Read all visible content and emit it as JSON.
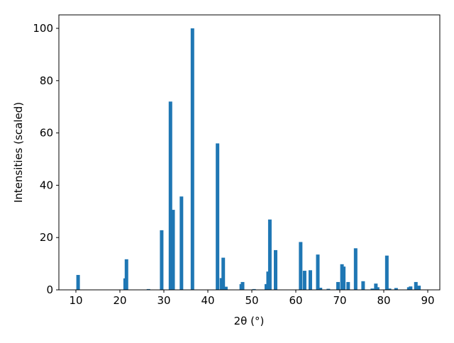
{
  "chart_data": {
    "type": "bar",
    "x_label": "2θ (°)",
    "y_label": "Intensities (scaled)",
    "color": "#1f77b4",
    "x": [
      10.5,
      21.2,
      21.5,
      26.5,
      29.5,
      31.5,
      32.1,
      34.0,
      36.5,
      42.2,
      43.1,
      43.5,
      44.1,
      47.6,
      47.9,
      50.5,
      53.3,
      53.7,
      54.1,
      55.4,
      61.1,
      62.0,
      63.3,
      65.0,
      65.6,
      67.4,
      69.6,
      70.5,
      70.9,
      71.9,
      73.6,
      75.3,
      77.4,
      78.2,
      78.6,
      80.7,
      81.3,
      82.8,
      85.7,
      86.1,
      87.3,
      88.0
    ],
    "values": [
      5.7,
      4.4,
      11.7,
      0.3,
      22.8,
      72,
      30.6,
      35.7,
      100,
      56,
      4.5,
      12.3,
      1.2,
      2.2,
      3,
      0.3,
      2.2,
      7,
      26.9,
      15.2,
      18.3,
      7.3,
      7.5,
      13.5,
      0.8,
      0.4,
      3,
      9.8,
      8.9,
      3,
      15.9,
      3.3,
      0.5,
      2.4,
      1,
      13.1,
      0.5,
      0.7,
      1,
      1.3,
      3,
      1.6
    ],
    "xlim": [
      6.13,
      92.74
    ],
    "xticks": [
      10,
      20,
      30,
      40,
      50,
      60,
      70,
      80,
      90
    ],
    "ylim": [
      0,
      105.15
    ],
    "yticks": [
      0,
      20,
      40,
      60,
      80,
      100
    ]
  }
}
